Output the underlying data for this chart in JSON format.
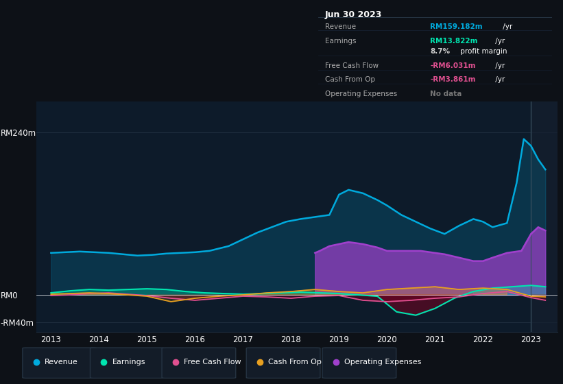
{
  "bg_color": "#0d1117",
  "chart_bg": "#0d1b2a",
  "ylim": [
    -55,
    285
  ],
  "y_ticks": [
    240,
    0,
    -40
  ],
  "y_tick_labels": [
    "RM240m",
    "RM0",
    "-RM40m"
  ],
  "xlim_start": 2012.7,
  "xlim_end": 2023.55,
  "x_ticks": [
    2013,
    2014,
    2015,
    2016,
    2017,
    2018,
    2019,
    2020,
    2021,
    2022,
    2023
  ],
  "vline_x": 2023.0,
  "shade_start": 2023.0,
  "shade_end": 2023.55,
  "revenue_color": "#00aadd",
  "revenue_fill": "#0d4060",
  "earnings_color": "#00e5b0",
  "earnings_fill_pos": "#006650",
  "earnings_fill_neg": "#003830",
  "fcf_color": "#e05090",
  "fcf_fill": "#5a1030",
  "cashop_color": "#e8a020",
  "cashop_fill": "#5a4010",
  "opex_color": "#a040cc",
  "opex_fill": "#3a1060",
  "grid_color": "#1e2d3d",
  "zero_line_color": "#ffffff",
  "legend_bg": "#131c28",
  "legend_border": "#2a3a4a",
  "tooltip_bg": "#0a0f1a",
  "tooltip_border": "#2a3a4a",
  "revenue_x": [
    2013.0,
    2013.3,
    2013.6,
    2013.9,
    2014.2,
    2014.5,
    2014.8,
    2015.1,
    2015.4,
    2015.7,
    2016.0,
    2016.3,
    2016.7,
    2017.0,
    2017.3,
    2017.6,
    2017.9,
    2018.2,
    2018.5,
    2018.8,
    2019.0,
    2019.2,
    2019.5,
    2019.8,
    2020.0,
    2020.3,
    2020.6,
    2020.9,
    2021.2,
    2021.5,
    2021.8,
    2022.0,
    2022.2,
    2022.5,
    2022.7,
    2022.85,
    2023.0,
    2023.15,
    2023.3
  ],
  "revenue_y": [
    62,
    63,
    64,
    63,
    62,
    60,
    58,
    59,
    61,
    62,
    63,
    65,
    72,
    82,
    92,
    100,
    108,
    112,
    115,
    118,
    148,
    155,
    150,
    140,
    132,
    118,
    108,
    98,
    90,
    102,
    112,
    108,
    100,
    106,
    165,
    230,
    220,
    200,
    185
  ],
  "earnings_x": [
    2013.0,
    2013.4,
    2013.8,
    2014.2,
    2014.6,
    2015.0,
    2015.4,
    2015.8,
    2016.2,
    2016.6,
    2017.0,
    2017.4,
    2017.8,
    2018.2,
    2018.6,
    2019.0,
    2019.4,
    2019.8,
    2020.2,
    2020.6,
    2021.0,
    2021.4,
    2021.8,
    2022.2,
    2022.6,
    2023.0,
    2023.3
  ],
  "earnings_y": [
    3,
    6,
    8,
    7,
    8,
    9,
    8,
    5,
    3,
    2,
    1,
    2,
    3,
    4,
    3,
    2,
    0,
    -2,
    -25,
    -30,
    -20,
    -5,
    5,
    10,
    12,
    14,
    12
  ],
  "fcf_x": [
    2013.0,
    2013.4,
    2013.8,
    2014.2,
    2014.6,
    2015.0,
    2015.5,
    2016.0,
    2016.5,
    2017.0,
    2017.5,
    2018.0,
    2018.5,
    2019.0,
    2019.5,
    2020.0,
    2020.5,
    2021.0,
    2021.5,
    2022.0,
    2022.5,
    2023.0,
    2023.3
  ],
  "fcf_y": [
    -1,
    0,
    2,
    3,
    1,
    -1,
    -5,
    -8,
    -5,
    -2,
    -3,
    -5,
    -2,
    -1,
    -8,
    -10,
    -8,
    -5,
    -3,
    2,
    5,
    -4,
    -8
  ],
  "cashop_x": [
    2013.0,
    2013.4,
    2013.8,
    2014.2,
    2014.6,
    2015.0,
    2015.5,
    2016.0,
    2016.5,
    2017.0,
    2017.5,
    2018.0,
    2018.5,
    2019.0,
    2019.5,
    2020.0,
    2020.5,
    2021.0,
    2021.5,
    2022.0,
    2022.5,
    2023.0,
    2023.3
  ],
  "cashop_y": [
    1,
    2,
    3,
    2,
    0,
    -2,
    -10,
    -5,
    -2,
    0,
    3,
    5,
    8,
    5,
    3,
    8,
    10,
    12,
    8,
    10,
    8,
    -2,
    -3
  ],
  "opex_x": [
    2018.5,
    2018.6,
    2018.8,
    2019.0,
    2019.2,
    2019.5,
    2019.8,
    2020.0,
    2020.2,
    2020.5,
    2020.7,
    2021.0,
    2021.2,
    2021.5,
    2021.8,
    2022.0,
    2022.2,
    2022.5,
    2022.8,
    2023.0,
    2023.15,
    2023.3
  ],
  "opex_y": [
    62,
    65,
    72,
    75,
    78,
    75,
    70,
    65,
    65,
    65,
    65,
    62,
    60,
    55,
    50,
    50,
    55,
    62,
    65,
    90,
    100,
    95
  ],
  "legend_items": [
    "Revenue",
    "Earnings",
    "Free Cash Flow",
    "Cash From Op",
    "Operating Expenses"
  ],
  "legend_colors": [
    "#00aadd",
    "#00e5b0",
    "#e05090",
    "#e8a020",
    "#a040cc"
  ],
  "tooltip_title": "Jun 30 2023",
  "tooltip_rows": [
    {
      "label": "Revenue",
      "value": "RM159.182m",
      "suffix": " /yr",
      "vcolor": "#00aadd"
    },
    {
      "label": "Earnings",
      "value": "RM13.822m",
      "suffix": " /yr",
      "vcolor": "#00e5b0"
    },
    {
      "label": "",
      "value": "8.7%",
      "suffix": " profit margin",
      "vcolor": "#cccccc"
    },
    {
      "label": "Free Cash Flow",
      "value": "-RM6.031m",
      "suffix": " /yr",
      "vcolor": "#e05090"
    },
    {
      "label": "Cash From Op",
      "value": "-RM3.861m",
      "suffix": " /yr",
      "vcolor": "#e05090"
    },
    {
      "label": "Operating Expenses",
      "value": "No data",
      "suffix": "",
      "vcolor": "#777777"
    }
  ]
}
